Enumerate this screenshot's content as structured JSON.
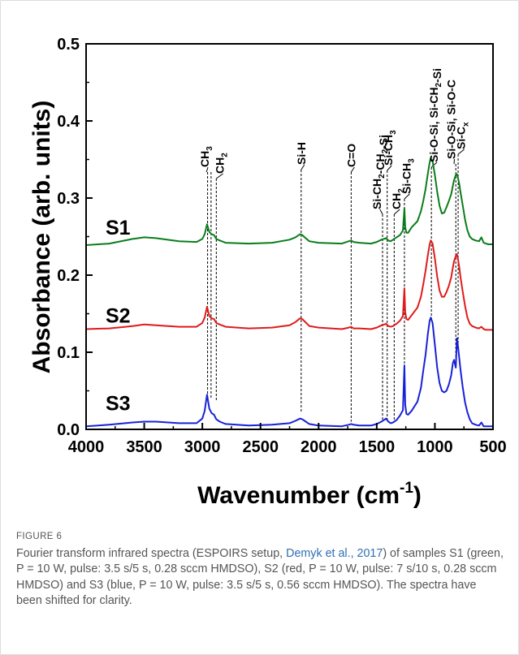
{
  "chart_data": {
    "type": "line",
    "xlabel_base": "Wavenumber (cm",
    "xlabel_sup": "-1",
    "xlabel_tail": ")",
    "ylabel": "Absorbance (arb. units)",
    "xlim": [
      4000,
      500
    ],
    "ylim": [
      0.0,
      0.5
    ],
    "x_ticks": [
      4000,
      3500,
      3000,
      2500,
      2000,
      1500,
      1000,
      500
    ],
    "y_ticks": [
      0.0,
      0.1,
      0.2,
      0.3,
      0.4,
      0.5
    ],
    "y_tick_labels": [
      "0.0",
      "0.1",
      "0.2",
      "0.3",
      "0.4",
      "0.5"
    ],
    "x_tick_labels": [
      "4000",
      "3500",
      "3000",
      "2500",
      "2000",
      "1500",
      "1000",
      "500"
    ],
    "series": [
      {
        "name": "S1",
        "color": "#0a7d1a",
        "x": [
          4000,
          3800,
          3600,
          3500,
          3400,
          3200,
          3050,
          3000,
          2980,
          2960,
          2940,
          2920,
          2900,
          2880,
          2850,
          2800,
          2600,
          2400,
          2250,
          2200,
          2160,
          2140,
          2120,
          2080,
          2000,
          1800,
          1740,
          1720,
          1700,
          1650,
          1550,
          1500,
          1460,
          1420,
          1400,
          1380,
          1360,
          1330,
          1300,
          1275,
          1262,
          1255,
          1245,
          1230,
          1200,
          1150,
          1120,
          1100,
          1080,
          1060,
          1045,
          1035,
          1020,
          1000,
          980,
          960,
          940,
          920,
          900,
          880,
          860,
          845,
          835,
          820,
          810,
          800,
          790,
          780,
          760,
          740,
          720,
          700,
          680,
          650,
          620,
          600,
          580,
          560,
          540,
          520,
          500
        ],
        "y": [
          0.239,
          0.241,
          0.247,
          0.249,
          0.248,
          0.244,
          0.243,
          0.247,
          0.253,
          0.266,
          0.256,
          0.253,
          0.252,
          0.247,
          0.245,
          0.242,
          0.241,
          0.242,
          0.246,
          0.249,
          0.253,
          0.252,
          0.249,
          0.244,
          0.242,
          0.241,
          0.244,
          0.245,
          0.243,
          0.242,
          0.241,
          0.243,
          0.246,
          0.248,
          0.245,
          0.244,
          0.246,
          0.249,
          0.252,
          0.258,
          0.287,
          0.262,
          0.255,
          0.255,
          0.262,
          0.27,
          0.283,
          0.296,
          0.312,
          0.332,
          0.346,
          0.352,
          0.348,
          0.33,
          0.308,
          0.29,
          0.28,
          0.281,
          0.288,
          0.296,
          0.305,
          0.316,
          0.323,
          0.33,
          0.331,
          0.325,
          0.318,
          0.308,
          0.29,
          0.272,
          0.258,
          0.25,
          0.247,
          0.245,
          0.244,
          0.249,
          0.242,
          0.241,
          0.24,
          0.24,
          0.24
        ]
      },
      {
        "name": "S2",
        "color": "#e01b1b",
        "x": [
          4000,
          3800,
          3600,
          3500,
          3400,
          3200,
          3050,
          3000,
          2980,
          2960,
          2940,
          2920,
          2900,
          2880,
          2850,
          2800,
          2600,
          2400,
          2250,
          2200,
          2160,
          2140,
          2120,
          2080,
          2000,
          1800,
          1740,
          1720,
          1700,
          1650,
          1550,
          1500,
          1460,
          1420,
          1400,
          1380,
          1360,
          1330,
          1300,
          1275,
          1262,
          1255,
          1245,
          1230,
          1200,
          1150,
          1120,
          1100,
          1080,
          1060,
          1045,
          1035,
          1020,
          1000,
          980,
          960,
          940,
          920,
          900,
          880,
          860,
          845,
          835,
          820,
          810,
          800,
          790,
          780,
          760,
          740,
          720,
          700,
          680,
          650,
          620,
          600,
          580,
          560,
          540,
          520,
          500
        ],
        "y": [
          0.13,
          0.131,
          0.134,
          0.136,
          0.135,
          0.133,
          0.133,
          0.138,
          0.145,
          0.159,
          0.147,
          0.144,
          0.143,
          0.138,
          0.136,
          0.133,
          0.131,
          0.132,
          0.135,
          0.139,
          0.144,
          0.143,
          0.14,
          0.134,
          0.132,
          0.13,
          0.132,
          0.133,
          0.131,
          0.131,
          0.13,
          0.132,
          0.135,
          0.137,
          0.134,
          0.133,
          0.134,
          0.137,
          0.141,
          0.147,
          0.183,
          0.152,
          0.143,
          0.142,
          0.148,
          0.158,
          0.172,
          0.188,
          0.206,
          0.226,
          0.24,
          0.245,
          0.241,
          0.222,
          0.198,
          0.18,
          0.172,
          0.172,
          0.178,
          0.186,
          0.197,
          0.21,
          0.218,
          0.225,
          0.227,
          0.219,
          0.21,
          0.198,
          0.178,
          0.16,
          0.145,
          0.137,
          0.134,
          0.132,
          0.131,
          0.133,
          0.13,
          0.129,
          0.129,
          0.129,
          0.129
        ]
      },
      {
        "name": "S3",
        "color": "#1722d8",
        "x": [
          4000,
          3800,
          3600,
          3500,
          3400,
          3200,
          3050,
          3000,
          2980,
          2960,
          2940,
          2920,
          2900,
          2880,
          2850,
          2800,
          2600,
          2400,
          2250,
          2200,
          2160,
          2140,
          2120,
          2080,
          2000,
          1800,
          1740,
          1720,
          1700,
          1650,
          1550,
          1500,
          1460,
          1420,
          1400,
          1380,
          1360,
          1330,
          1300,
          1275,
          1262,
          1255,
          1245,
          1230,
          1200,
          1150,
          1120,
          1100,
          1080,
          1060,
          1045,
          1035,
          1020,
          1000,
          980,
          960,
          940,
          920,
          900,
          880,
          860,
          845,
          835,
          820,
          810,
          800,
          790,
          780,
          760,
          740,
          720,
          700,
          680,
          650,
          620,
          600,
          580,
          560,
          540,
          520,
          500
        ],
        "y": [
          0.004,
          0.006,
          0.009,
          0.01,
          0.01,
          0.008,
          0.008,
          0.014,
          0.024,
          0.045,
          0.027,
          0.021,
          0.019,
          0.013,
          0.01,
          0.007,
          0.005,
          0.006,
          0.008,
          0.011,
          0.014,
          0.013,
          0.011,
          0.007,
          0.005,
          0.004,
          0.006,
          0.007,
          0.006,
          0.005,
          0.005,
          0.007,
          0.01,
          0.014,
          0.01,
          0.008,
          0.009,
          0.012,
          0.018,
          0.025,
          0.083,
          0.032,
          0.02,
          0.019,
          0.024,
          0.036,
          0.054,
          0.076,
          0.097,
          0.124,
          0.141,
          0.145,
          0.138,
          0.11,
          0.08,
          0.06,
          0.05,
          0.048,
          0.05,
          0.058,
          0.07,
          0.086,
          0.09,
          0.08,
          0.118,
          0.106,
          0.092,
          0.078,
          0.054,
          0.035,
          0.022,
          0.013,
          0.008,
          0.006,
          0.005,
          0.009,
          0.004,
          0.004,
          0.004,
          0.004,
          0.004
        ]
      }
    ],
    "series_labels": [
      {
        "text": "S1",
        "y": 0.262
      },
      {
        "text": "S2",
        "y": 0.148
      },
      {
        "text": "S3",
        "y": 0.034
      }
    ],
    "annotations": [
      {
        "parts": [
          [
            "CH",
            ""
          ],
          [
            "3",
            "sub"
          ]
        ],
        "line_x": [
          2955,
          2925
        ],
        "y_bottom": 0.041
      },
      {
        "parts": [
          [
            "CH",
            ""
          ],
          [
            "2",
            "sub"
          ]
        ],
        "line_x": [
          2880
        ],
        "y_bottom": 0.037
      },
      {
        "parts": [
          [
            "Si-H",
            ""
          ]
        ],
        "line_x": [
          2150
        ],
        "y_bottom": 0.023
      },
      {
        "parts": [
          [
            "C=O",
            ""
          ]
        ],
        "line_x": [
          1720
        ],
        "y_bottom": 0.01
      },
      {
        "parts": [
          [
            "Si-CH",
            ""
          ],
          [
            "2",
            "sub"
          ],
          [
            "-CH",
            ""
          ],
          [
            "2",
            "sub"
          ],
          [
            "-Si",
            ""
          ]
        ],
        "line_x": [
          1450
        ],
        "y_bottom": 0.01
      },
      {
        "parts": [
          [
            "Si-CH",
            ""
          ],
          [
            "3",
            "sub"
          ]
        ],
        "line_x": [
          1410
        ],
        "y_bottom": 0.01
      },
      {
        "parts": [
          [
            "CH",
            ""
          ],
          [
            "2",
            "sub"
          ]
        ],
        "line_x": [
          1350
        ],
        "y_bottom": 0.01
      },
      {
        "parts": [
          [
            "Si-CH",
            ""
          ],
          [
            "3",
            "sub"
          ]
        ],
        "line_x": [
          1262
        ],
        "y_bottom": 0.08
      },
      {
        "parts": [
          [
            "Si-O-Si, Si-CH",
            ""
          ],
          [
            "2",
            "sub"
          ],
          [
            "-Si",
            ""
          ]
        ],
        "line_x": [
          1030
        ],
        "y_bottom": 0.143
      },
      {
        "parts": [
          [
            "Si-O-Si, Si-O-C",
            ""
          ]
        ],
        "line_x": [
          820
        ],
        "y_bottom": 0.08
      },
      {
        "parts": [
          [
            "Si-C",
            ""
          ],
          [
            "x",
            "sub"
          ]
        ],
        "line_x": [
          800
        ],
        "y_bottom": 0.11
      }
    ]
  },
  "caption": {
    "label": "FIGURE 6",
    "text_before_link": "Fourier transform infrared spectra (ESPOIRS setup, ",
    "link_text": "Demyk et al., 2017",
    "text_after_link": ") of samples S1 (green, P = 10 W, pulse: 3.5 s/5 s, 0.28 sccm HMDSO), S2 (red, P = 10 W, pulse: 7 s/10 s, 0.28 sccm HMDSO) and S3 (blue, P = 10 W, pulse: 3.5 s/5 s, 0.56 sccm HMDSO). The spectra have been shifted for clarity."
  }
}
